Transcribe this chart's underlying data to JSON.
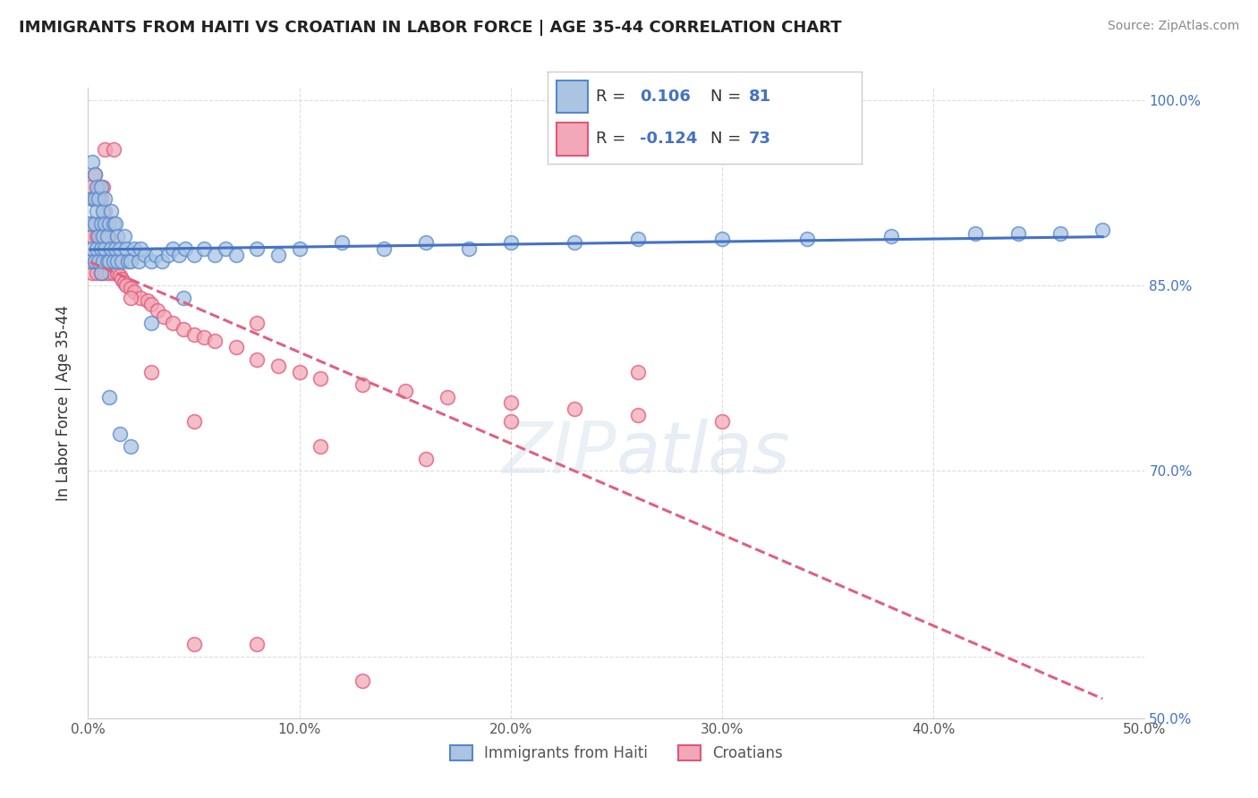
{
  "title": "IMMIGRANTS FROM HAITI VS CROATIAN IN LABOR FORCE | AGE 35-44 CORRELATION CHART",
  "source": "Source: ZipAtlas.com",
  "ylabel": "In Labor Force | Age 35-44",
  "xlim": [
    0.0,
    0.5
  ],
  "ylim": [
    0.5,
    1.01
  ],
  "xticks": [
    0.0,
    0.1,
    0.2,
    0.3,
    0.4,
    0.5
  ],
  "xtick_labels": [
    "0.0%",
    "10.0%",
    "20.0%",
    "30.0%",
    "40.0%",
    "50.0%"
  ],
  "ytick_labels_left": [
    "",
    "",
    "",
    "",
    "",
    "",
    "",
    "",
    "",
    "",
    ""
  ],
  "ytick_labels_right": [
    "50.0%",
    "",
    "",
    "",
    "70.0%",
    "",
    "",
    "85.0%",
    "",
    "",
    "100.0%"
  ],
  "yticks": [
    0.5,
    0.55,
    0.6,
    0.65,
    0.7,
    0.75,
    0.8,
    0.85,
    0.9,
    0.95,
    1.0
  ],
  "haiti_color": "#aac4e2",
  "croatian_color": "#f2a8b8",
  "haiti_edge_color": "#5588cc",
  "croatian_edge_color": "#e05878",
  "haiti_R": 0.106,
  "haiti_N": 81,
  "croatian_R": -0.124,
  "croatian_N": 73,
  "haiti_line_color": "#4472c4",
  "croatian_line_color": "#e06080",
  "legend_label_haiti": "Immigrants from Haiti",
  "legend_label_croatian": "Croatians",
  "haiti_x": [
    0.001,
    0.001,
    0.002,
    0.002,
    0.002,
    0.003,
    0.003,
    0.003,
    0.003,
    0.004,
    0.004,
    0.004,
    0.005,
    0.005,
    0.005,
    0.006,
    0.006,
    0.006,
    0.006,
    0.007,
    0.007,
    0.007,
    0.008,
    0.008,
    0.008,
    0.009,
    0.009,
    0.01,
    0.01,
    0.011,
    0.011,
    0.012,
    0.012,
    0.013,
    0.013,
    0.014,
    0.014,
    0.015,
    0.016,
    0.017,
    0.018,
    0.019,
    0.02,
    0.022,
    0.024,
    0.025,
    0.027,
    0.03,
    0.032,
    0.035,
    0.038,
    0.04,
    0.043,
    0.046,
    0.05,
    0.055,
    0.06,
    0.065,
    0.07,
    0.08,
    0.09,
    0.1,
    0.12,
    0.14,
    0.16,
    0.18,
    0.2,
    0.23,
    0.26,
    0.3,
    0.34,
    0.38,
    0.42,
    0.44,
    0.46,
    0.48,
    0.01,
    0.015,
    0.02,
    0.03,
    0.045
  ],
  "haiti_y": [
    0.87,
    0.9,
    0.88,
    0.92,
    0.95,
    0.87,
    0.9,
    0.92,
    0.94,
    0.88,
    0.91,
    0.93,
    0.87,
    0.89,
    0.92,
    0.86,
    0.88,
    0.9,
    0.93,
    0.87,
    0.89,
    0.91,
    0.88,
    0.9,
    0.92,
    0.87,
    0.89,
    0.87,
    0.9,
    0.88,
    0.91,
    0.87,
    0.9,
    0.88,
    0.9,
    0.87,
    0.89,
    0.88,
    0.87,
    0.89,
    0.88,
    0.87,
    0.87,
    0.88,
    0.87,
    0.88,
    0.875,
    0.87,
    0.875,
    0.87,
    0.875,
    0.88,
    0.875,
    0.88,
    0.875,
    0.88,
    0.875,
    0.88,
    0.875,
    0.88,
    0.875,
    0.88,
    0.885,
    0.88,
    0.885,
    0.88,
    0.885,
    0.885,
    0.888,
    0.888,
    0.888,
    0.89,
    0.892,
    0.892,
    0.892,
    0.895,
    0.76,
    0.73,
    0.72,
    0.82,
    0.84
  ],
  "croatian_x": [
    0.001,
    0.001,
    0.001,
    0.002,
    0.002,
    0.002,
    0.003,
    0.003,
    0.003,
    0.004,
    0.004,
    0.004,
    0.005,
    0.005,
    0.005,
    0.006,
    0.006,
    0.006,
    0.007,
    0.007,
    0.007,
    0.008,
    0.008,
    0.008,
    0.009,
    0.009,
    0.01,
    0.01,
    0.011,
    0.012,
    0.013,
    0.014,
    0.015,
    0.016,
    0.017,
    0.018,
    0.02,
    0.022,
    0.025,
    0.028,
    0.03,
    0.033,
    0.036,
    0.04,
    0.045,
    0.05,
    0.055,
    0.06,
    0.07,
    0.08,
    0.09,
    0.1,
    0.11,
    0.13,
    0.15,
    0.17,
    0.2,
    0.23,
    0.26,
    0.3,
    0.008,
    0.012,
    0.02,
    0.03,
    0.05,
    0.08,
    0.11,
    0.16,
    0.2,
    0.26,
    0.05,
    0.08,
    0.13
  ],
  "croatian_y": [
    0.87,
    0.9,
    0.93,
    0.86,
    0.89,
    0.92,
    0.87,
    0.9,
    0.94,
    0.86,
    0.89,
    0.92,
    0.87,
    0.9,
    0.93,
    0.86,
    0.89,
    0.92,
    0.87,
    0.9,
    0.93,
    0.86,
    0.89,
    0.91,
    0.87,
    0.9,
    0.86,
    0.89,
    0.87,
    0.86,
    0.865,
    0.86,
    0.858,
    0.855,
    0.852,
    0.85,
    0.848,
    0.845,
    0.84,
    0.838,
    0.835,
    0.83,
    0.825,
    0.82,
    0.815,
    0.81,
    0.808,
    0.805,
    0.8,
    0.79,
    0.785,
    0.78,
    0.775,
    0.77,
    0.765,
    0.76,
    0.755,
    0.75,
    0.745,
    0.74,
    0.96,
    0.96,
    0.84,
    0.78,
    0.74,
    0.82,
    0.72,
    0.71,
    0.74,
    0.78,
    0.56,
    0.56,
    0.53
  ]
}
